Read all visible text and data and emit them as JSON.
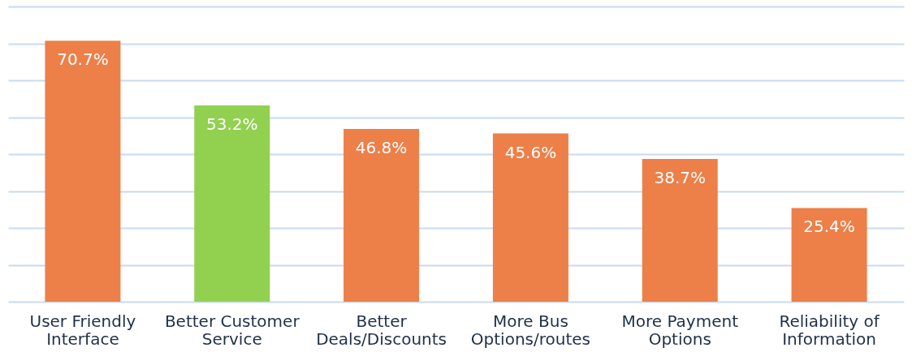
{
  "chart_data": {
    "type": "bar",
    "categories": [
      "User Friendly Interface",
      "Better Customer Service",
      "Better Deals/Discounts",
      "More Bus Options/routes",
      "More Payment Options",
      "Reliability of Information"
    ],
    "values": [
      70.7,
      53.2,
      46.8,
      45.6,
      38.7,
      25.4
    ],
    "colors": [
      "#ed7f48",
      "#92d050",
      "#ed7f48",
      "#ed7f48",
      "#ed7f48",
      "#ed7f48"
    ],
    "value_labels": [
      "70.7%",
      "53.2%",
      "46.8%",
      "45.6%",
      "38.7%",
      "25.4%"
    ],
    "ylim": [
      0,
      80
    ],
    "yticks": [
      {
        "value": 0,
        "label": null
      },
      {
        "value": 10,
        "label": null
      },
      {
        "value": 20,
        "label": null
      },
      {
        "value": 30,
        "label": null
      },
      {
        "value": 40,
        "label": null
      },
      {
        "value": 50,
        "label": null
      },
      {
        "value": 60,
        "label": null
      },
      {
        "value": 70,
        "label": null
      },
      {
        "value": 80,
        "label": null
      }
    ],
    "grid": "y",
    "tick_labels": "x"
  }
}
